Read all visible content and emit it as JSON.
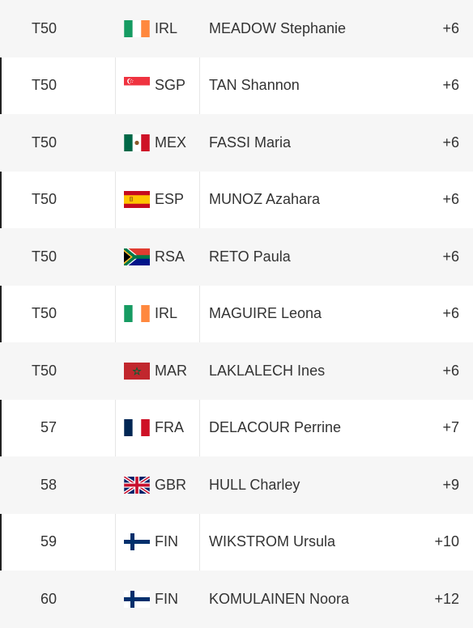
{
  "leaderboard": {
    "rows": [
      {
        "pos": "T50",
        "country": "IRL",
        "flag": "ireland-flag-icon",
        "player": "MEADOW Stephanie",
        "score": "+6"
      },
      {
        "pos": "T50",
        "country": "SGP",
        "flag": "singapore-flag-icon",
        "player": "TAN Shannon",
        "score": "+6"
      },
      {
        "pos": "T50",
        "country": "MEX",
        "flag": "mexico-flag-icon",
        "player": "FASSI Maria",
        "score": "+6"
      },
      {
        "pos": "T50",
        "country": "ESP",
        "flag": "spain-flag-icon",
        "player": "MUNOZ Azahara",
        "score": "+6"
      },
      {
        "pos": "T50",
        "country": "RSA",
        "flag": "south-africa-flag-icon",
        "player": "RETO Paula",
        "score": "+6"
      },
      {
        "pos": "T50",
        "country": "IRL",
        "flag": "ireland-flag-icon",
        "player": "MAGUIRE Leona",
        "score": "+6"
      },
      {
        "pos": "T50",
        "country": "MAR",
        "flag": "morocco-flag-icon",
        "player": "LAKLALECH Ines",
        "score": "+6"
      },
      {
        "pos": "57",
        "country": "FRA",
        "flag": "france-flag-icon",
        "player": "DELACOUR Perrine",
        "score": "+7"
      },
      {
        "pos": "58",
        "country": "GBR",
        "flag": "uk-flag-icon",
        "player": "HULL Charley",
        "score": "+9"
      },
      {
        "pos": "59",
        "country": "FIN",
        "flag": "finland-flag-icon",
        "player": "WIKSTROM Ursula",
        "score": "+10"
      },
      {
        "pos": "60",
        "country": "FIN",
        "flag": "finland-flag-icon",
        "player": "KOMULAINEN Noora",
        "score": "+12"
      }
    ]
  }
}
